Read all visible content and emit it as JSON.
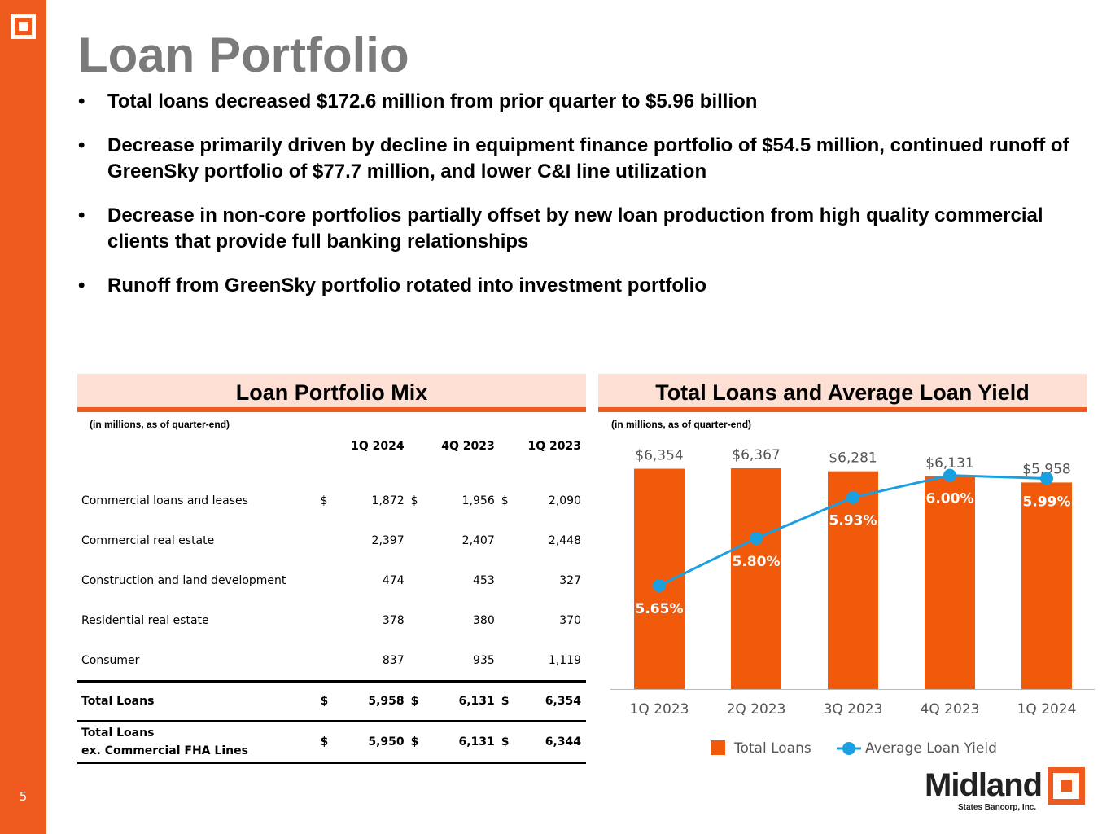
{
  "page": {
    "title": "Loan Portfolio",
    "number": "5",
    "bullets": [
      "Total loans decreased $172.6 million from prior quarter to $5.96 billion",
      "Decrease primarily driven by decline in equipment finance portfolio of $54.5 million, continued runoff of GreenSky portfolio of $77.7 million, and lower C&I line utilization",
      "Decrease in non-core portfolios partially offset by new loan production from high quality commercial clients that provide full banking relationships",
      "Runoff from GreenSky portfolio rotated into investment portfolio"
    ]
  },
  "mix": {
    "header": "Loan Portfolio Mix",
    "note": "(in millions, as of quarter-end)",
    "columns": [
      "1Q 2024",
      "4Q 2023",
      "1Q 2023"
    ],
    "rows": [
      {
        "label": "Commercial loans and leases",
        "cur": "$",
        "values": [
          "1,872",
          "1,956",
          "2,090"
        ]
      },
      {
        "label": "Commercial real estate",
        "cur": "",
        "values": [
          "2,397",
          "2,407",
          "2,448"
        ]
      },
      {
        "label": "Construction and land development",
        "cur": "",
        "values": [
          "474",
          "453",
          "327"
        ]
      },
      {
        "label": "Residential real estate",
        "cur": "",
        "values": [
          "378",
          "380",
          "370"
        ]
      },
      {
        "label": "Consumer",
        "cur": "",
        "values": [
          "837",
          "935",
          "1,119"
        ]
      }
    ],
    "total": {
      "label": "Total Loans",
      "cur": "$",
      "values": [
        "5,958",
        "6,131",
        "6,354"
      ]
    },
    "total_ex": {
      "label_line1": "Total Loans",
      "label_line2": "ex. Commercial FHA Lines",
      "cur": "$",
      "values": [
        "5,950",
        "6,131",
        "6,344"
      ]
    }
  },
  "chart_header": "Total Loans and Average Loan Yield",
  "chart_note": "(in millions, as of quarter-end)",
  "chart_data": {
    "type": "bar",
    "title": "Total Loans and Average Loan Yield",
    "categories": [
      "1Q 2023",
      "2Q 2023",
      "3Q 2023",
      "4Q 2023",
      "1Q 2024"
    ],
    "series": [
      {
        "name": "Total Loans",
        "type": "bar",
        "values": [
          6354,
          6367,
          6281,
          6131,
          5958
        ],
        "labels": [
          "$6,354",
          "$6,367",
          "$6,281",
          "$6,131",
          "$5,958"
        ]
      },
      {
        "name": "Average Loan Yield",
        "type": "line",
        "values": [
          5.65,
          5.8,
          5.93,
          6.0,
          5.99
        ],
        "labels": [
          "5.65%",
          "5.80%",
          "5.93%",
          "6.00%",
          "5.99%"
        ]
      }
    ],
    "legend": [
      "Total Loans",
      "Average Loan Yield"
    ],
    "legend_position": "bottom",
    "colors": {
      "bar": "#f05a0a",
      "line": "#1aa0e0"
    }
  },
  "brand": {
    "name": "Midland",
    "subtitle": "States Bancorp, Inc."
  }
}
